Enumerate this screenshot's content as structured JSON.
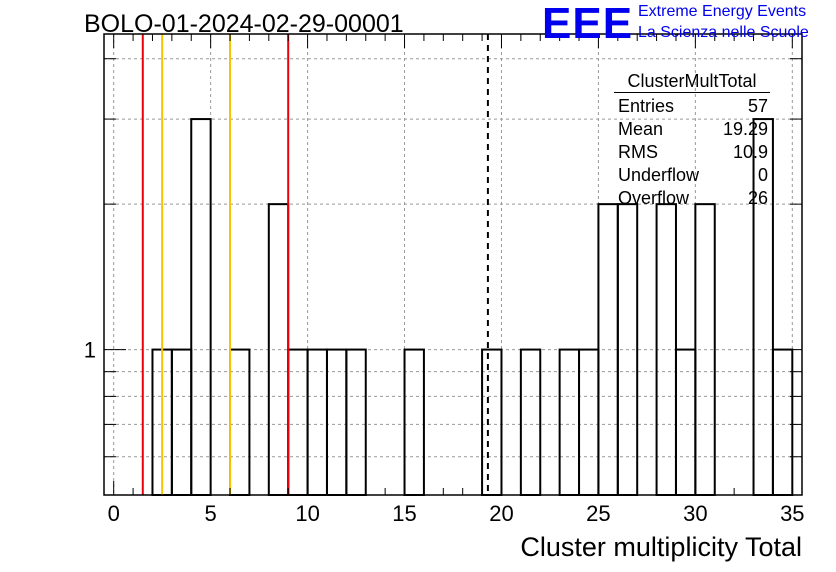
{
  "header": {
    "run_title": "BOLO-01-2024-02-29-00001",
    "logo_text": "EEE",
    "logo_line1": "Extreme Energy Events",
    "logo_line2": "La Scienza nelle Scuole",
    "logo_color": "#0000ee"
  },
  "stats_box": {
    "name": "ClusterMultTotal",
    "rows": [
      {
        "label": "Entries",
        "value": "57"
      },
      {
        "label": "Mean",
        "value": "19.29"
      },
      {
        "label": "RMS",
        "value": "10.9"
      },
      {
        "label": "Underflow",
        "value": "0"
      },
      {
        "label": "Overflow",
        "value": "26"
      }
    ]
  },
  "chart_data": {
    "type": "histogram",
    "title": "BOLO-01-2024-02-29-00001",
    "xlabel": "Cluster multiplicity Total",
    "ylabel": "",
    "log_y": true,
    "grid": true,
    "xlim": [
      -0.5,
      35.5
    ],
    "ylim": [
      0.5,
      4.5
    ],
    "x_ticks": [
      0,
      5,
      10,
      15,
      20,
      25,
      30,
      35
    ],
    "y_tick_labels": [
      "1"
    ],
    "bin_width": 1,
    "bins": [
      {
        "x": 2.5,
        "count": 1
      },
      {
        "x": 3.5,
        "count": 1
      },
      {
        "x": 4.5,
        "count": 3
      },
      {
        "x": 6.5,
        "count": 1
      },
      {
        "x": 8.5,
        "count": 2
      },
      {
        "x": 9.5,
        "count": 1
      },
      {
        "x": 10.5,
        "count": 1
      },
      {
        "x": 11.5,
        "count": 1
      },
      {
        "x": 12.5,
        "count": 1
      },
      {
        "x": 15.5,
        "count": 1
      },
      {
        "x": 19.5,
        "count": 1
      },
      {
        "x": 21.5,
        "count": 1
      },
      {
        "x": 23.5,
        "count": 1
      },
      {
        "x": 24.5,
        "count": 1
      },
      {
        "x": 25.5,
        "count": 2
      },
      {
        "x": 26.5,
        "count": 2
      },
      {
        "x": 28.5,
        "count": 2
      },
      {
        "x": 29.5,
        "count": 1
      },
      {
        "x": 30.5,
        "count": 2
      },
      {
        "x": 33.5,
        "count": 3
      },
      {
        "x": 34.5,
        "count": 1
      }
    ],
    "reference_lines": [
      {
        "x": 1.5,
        "color": "#e8000b",
        "style": "solid"
      },
      {
        "x": 2.5,
        "color": "#f5c400",
        "style": "solid"
      },
      {
        "x": 6.0,
        "color": "#f5c400",
        "style": "solid"
      },
      {
        "x": 9.0,
        "color": "#e8000b",
        "style": "solid"
      },
      {
        "x": 19.3,
        "color": "#000000",
        "style": "dashed"
      }
    ]
  }
}
